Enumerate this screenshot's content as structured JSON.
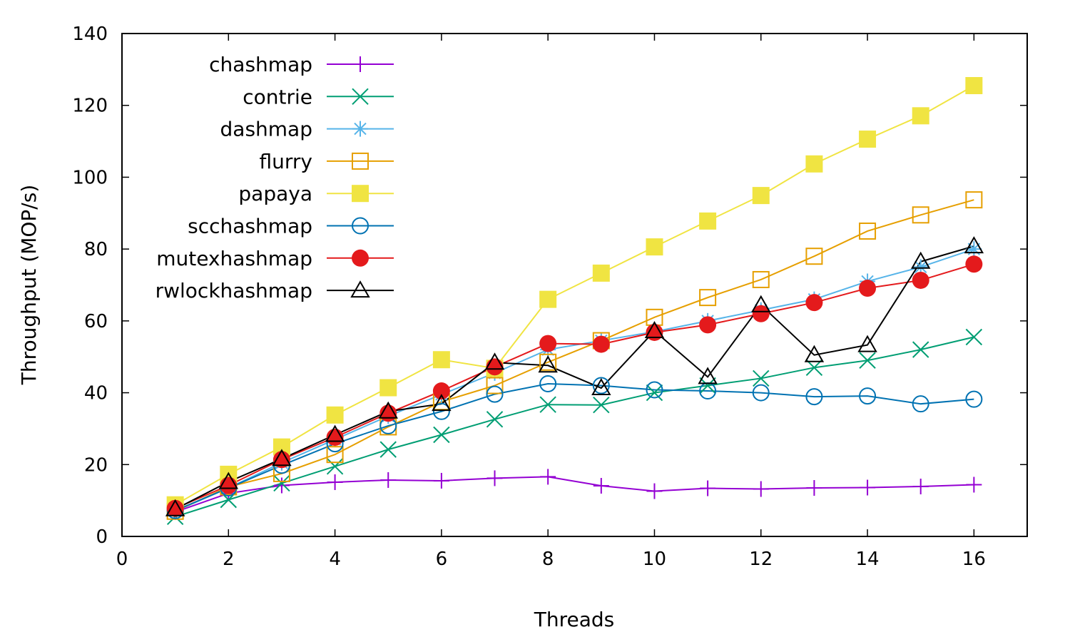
{
  "chart_data": {
    "type": "line",
    "xlabel": "Threads",
    "ylabel": "Throughput (MOP/s)",
    "xlim": [
      0,
      17
    ],
    "ylim": [
      0,
      140
    ],
    "xticks": [
      0,
      2,
      4,
      6,
      8,
      10,
      12,
      14,
      16
    ],
    "yticks": [
      0,
      20,
      40,
      60,
      80,
      100,
      120,
      140
    ],
    "grid": false,
    "legend_position": "top-left",
    "x": [
      1,
      2,
      3,
      4,
      5,
      6,
      7,
      8,
      9,
      10,
      11,
      12,
      13,
      14,
      15,
      16
    ],
    "series": [
      {
        "name": "chashmap",
        "color": "#9400d3",
        "marker": "plus",
        "values": [
          6.8,
          12.0,
          14.2,
          15.1,
          15.7,
          15.5,
          16.2,
          16.6,
          14.1,
          12.6,
          13.4,
          13.2,
          13.5,
          13.6,
          13.9,
          14.4
        ]
      },
      {
        "name": "contrie",
        "color": "#009e73",
        "marker": "cross",
        "values": [
          5.5,
          10.2,
          14.8,
          19.5,
          24.2,
          28.3,
          32.6,
          36.7,
          36.6,
          40.0,
          42.0,
          44.0,
          47.0,
          49.0,
          52.0,
          55.5
        ]
      },
      {
        "name": "dashmap",
        "color": "#56b4e9",
        "marker": "star",
        "values": [
          7.0,
          13.5,
          20.5,
          27.0,
          33.5,
          39.5,
          45.5,
          52.0,
          54.5,
          57.0,
          60.0,
          63.0,
          66.0,
          71.0,
          75.0,
          80.0
        ]
      },
      {
        "name": "flurry",
        "color": "#e69f00",
        "marker": "square-open",
        "values": [
          7.0,
          13.8,
          17.5,
          22.8,
          30.5,
          37.5,
          42.0,
          48.5,
          54.5,
          61.0,
          66.5,
          71.5,
          78.0,
          85.0,
          89.5,
          93.7
        ]
      },
      {
        "name": "papaya",
        "color": "#f0e442",
        "marker": "square-filled",
        "values": [
          8.8,
          17.3,
          24.9,
          33.8,
          41.4,
          49.2,
          46.8,
          66.0,
          73.3,
          80.6,
          87.8,
          94.9,
          103.7,
          110.6,
          117.1,
          125.5
        ]
      },
      {
        "name": "scchashmap",
        "color": "#0072b2",
        "marker": "circle-open",
        "values": [
          7.2,
          13.5,
          19.8,
          25.8,
          30.8,
          34.8,
          39.6,
          42.5,
          42.0,
          40.8,
          40.5,
          40.0,
          38.9,
          39.1,
          36.9,
          38.2
        ]
      },
      {
        "name": "mutexhashmap",
        "color": "#e41a1c",
        "marker": "circle-filled",
        "values": [
          7.8,
          14.2,
          21.4,
          27.6,
          34.3,
          40.5,
          47.2,
          53.7,
          53.5,
          56.8,
          58.9,
          62.0,
          65.1,
          69.1,
          71.3,
          75.8
        ]
      },
      {
        "name": "rwlockhashmap",
        "color": "#000000",
        "marker": "triangle-open",
        "values": [
          7.6,
          15.2,
          21.6,
          28.3,
          34.8,
          36.9,
          48.4,
          47.6,
          41.3,
          57.2,
          44.4,
          64.4,
          50.5,
          53.3,
          76.5,
          80.8
        ]
      }
    ]
  }
}
